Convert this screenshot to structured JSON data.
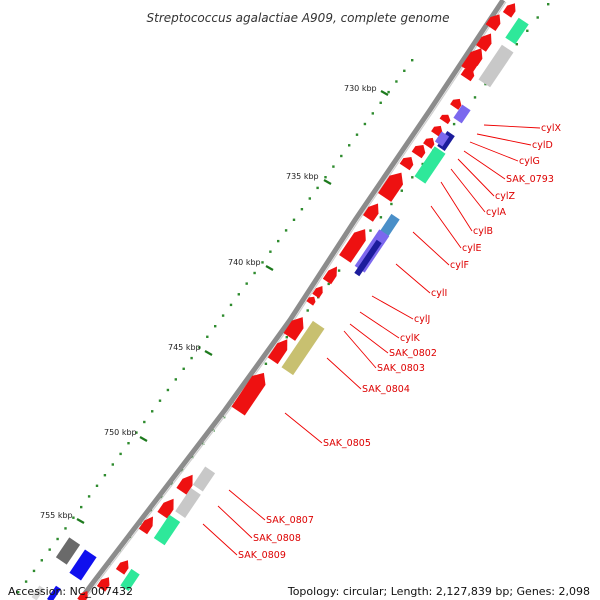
{
  "title": "Streptococcus agalactiae A909, complete genome",
  "footer": {
    "accession": "Accession: NC_007432",
    "summary": "Topology: circular; Length: 2,127,839 bp; Genes: 2,098"
  },
  "colors": {
    "backbone": "#8c8c8c",
    "gene_forward": "#ee1111",
    "label": "#dd0000",
    "leader": "#ee0000",
    "tick_major": "#1d7a1d",
    "tick_minor": "#2e8b2e",
    "feature_mint": "#2ee89a",
    "feature_grey": "#c8c8c8",
    "feature_darkgrey": "#6a6a6a",
    "feature_periwinkle": "#7b68ee",
    "feature_indigo": "#1c1c9c",
    "feature_blue": "#1010ee",
    "feature_steelblue": "#4a8fc8",
    "feature_khaki": "#c8c070"
  },
  "ticks": [
    {
      "label": "730 kbp"
    },
    {
      "label": "735 kbp"
    },
    {
      "label": "740 kbp"
    },
    {
      "label": "745 kbp"
    },
    {
      "label": "750 kbp"
    },
    {
      "label": "755 kbp"
    }
  ],
  "gene_labels": [
    "cylX",
    "cylD",
    "cylG",
    "SAK_0793",
    "cylZ",
    "cylA",
    "cylB",
    "cylE",
    "cylF",
    "cylI",
    "cylJ",
    "cylK",
    "SAK_0802",
    "SAK_0803",
    "SAK_0804",
    "SAK_0805",
    "SAK_0807",
    "SAK_0808",
    "SAK_0809"
  ]
}
